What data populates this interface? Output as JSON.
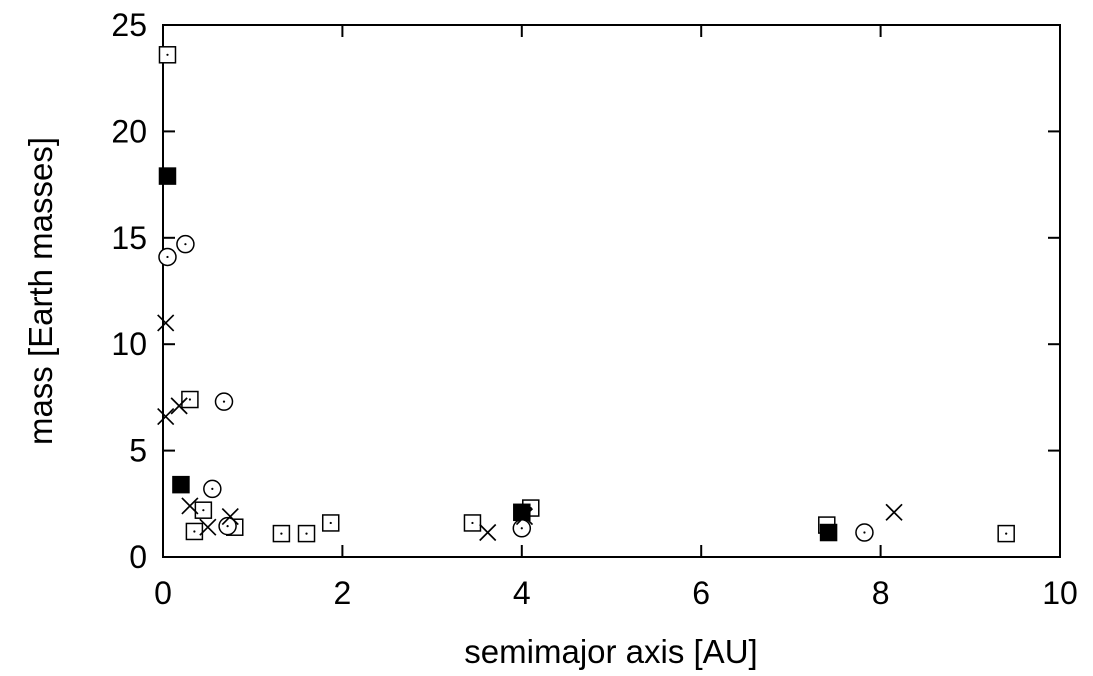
{
  "chart_data": {
    "type": "scatter",
    "title": "",
    "xlabel": "semimajor axis [AU]",
    "ylabel": "mass [Earth masses]",
    "xlim": [
      0,
      10
    ],
    "ylim": [
      0,
      25
    ],
    "xticks": [
      "0",
      "2",
      "4",
      "6",
      "8",
      "10"
    ],
    "yticks": [
      "0",
      "5",
      "10",
      "15",
      "20",
      "25"
    ],
    "grid": false,
    "legend": "none",
    "series": [
      {
        "marker": "open-square-dot",
        "points": [
          [
            0.05,
            23.6
          ],
          [
            0.3,
            7.4
          ],
          [
            0.45,
            2.2
          ],
          [
            0.35,
            1.2
          ],
          [
            0.8,
            1.4
          ],
          [
            1.32,
            1.1
          ],
          [
            1.6,
            1.1
          ],
          [
            1.87,
            1.6
          ],
          [
            3.45,
            1.6
          ],
          [
            4.1,
            2.3
          ],
          [
            7.4,
            1.5
          ],
          [
            9.4,
            1.1
          ]
        ]
      },
      {
        "marker": "filled-square",
        "points": [
          [
            0.05,
            17.9
          ],
          [
            0.2,
            3.4
          ],
          [
            4.0,
            2.1
          ],
          [
            7.42,
            1.15
          ]
        ]
      },
      {
        "marker": "circle-dot",
        "points": [
          [
            0.05,
            14.1
          ],
          [
            0.25,
            14.7
          ],
          [
            0.68,
            7.3
          ],
          [
            0.55,
            3.2
          ],
          [
            0.72,
            1.45
          ],
          [
            4.0,
            1.35
          ],
          [
            7.82,
            1.15
          ]
        ]
      },
      {
        "marker": "cross",
        "points": [
          [
            0.03,
            11.0
          ],
          [
            0.03,
            6.6
          ],
          [
            0.18,
            7.1
          ],
          [
            0.3,
            2.4
          ],
          [
            0.5,
            1.4
          ],
          [
            0.75,
            1.9
          ],
          [
            3.62,
            1.15
          ],
          [
            4.03,
            1.9
          ],
          [
            8.15,
            2.1
          ]
        ]
      }
    ]
  }
}
